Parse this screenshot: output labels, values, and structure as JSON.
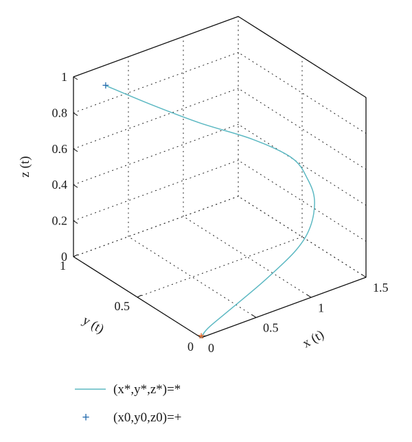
{
  "chart_data": {
    "type": "line3d",
    "xlabel": "x (t)",
    "ylabel": "y (t)",
    "zlabel": "z (t)",
    "xlim": [
      0,
      1.5
    ],
    "ylim": [
      0,
      1
    ],
    "zlim": [
      0,
      1
    ],
    "xticks": [
      {
        "v": 0,
        "label": "0"
      },
      {
        "v": 0.5,
        "label": "0.5"
      },
      {
        "v": 1,
        "label": "1"
      },
      {
        "v": 1.5,
        "label": "1.5"
      }
    ],
    "yticks": [
      {
        "v": 0,
        "label": "0"
      },
      {
        "v": 0.5,
        "label": "0.5"
      },
      {
        "v": 1,
        "label": "1"
      }
    ],
    "zticks": [
      {
        "v": 0,
        "label": "0"
      },
      {
        "v": 0.2,
        "label": "0.2"
      },
      {
        "v": 0.4,
        "label": "0.4"
      },
      {
        "v": 0.6,
        "label": "0.6"
      },
      {
        "v": 0.8,
        "label": "0.8"
      },
      {
        "v": 1,
        "label": "1"
      }
    ],
    "grid": true,
    "series": [
      {
        "name": "(x*,y*,z*)=*",
        "color": "#5bb8c2",
        "x": [
          0.27,
          0.52,
          0.8,
          1.12,
          1.34,
          1.4,
          1.38,
          1.25,
          1.05,
          0.7,
          0.35,
          0.1,
          0.02,
          0.0
        ],
        "y": [
          0.98,
          0.85,
          0.7,
          0.56,
          0.44,
          0.37,
          0.3,
          0.22,
          0.16,
          0.1,
          0.05,
          0.02,
          0.005,
          0.0
        ],
        "z": [
          0.9,
          0.8,
          0.7,
          0.6,
          0.5,
          0.4,
          0.32,
          0.24,
          0.18,
          0.12,
          0.07,
          0.03,
          0.01,
          0.0
        ]
      }
    ],
    "markers": [
      {
        "name": "(x0,y0,z0)=+",
        "symbol": "+",
        "color": "#2a6fb0",
        "x": 0.27,
        "y": 0.98,
        "z": 0.9
      },
      {
        "symbol": "*",
        "color": "#e8611f",
        "x": 0,
        "y": 0,
        "z": 0
      }
    ]
  },
  "legend": {
    "line_label": "(x*,y*,z*)=*",
    "marker_label": "(x0,y0,z0)=+",
    "marker_symbol": "+"
  }
}
